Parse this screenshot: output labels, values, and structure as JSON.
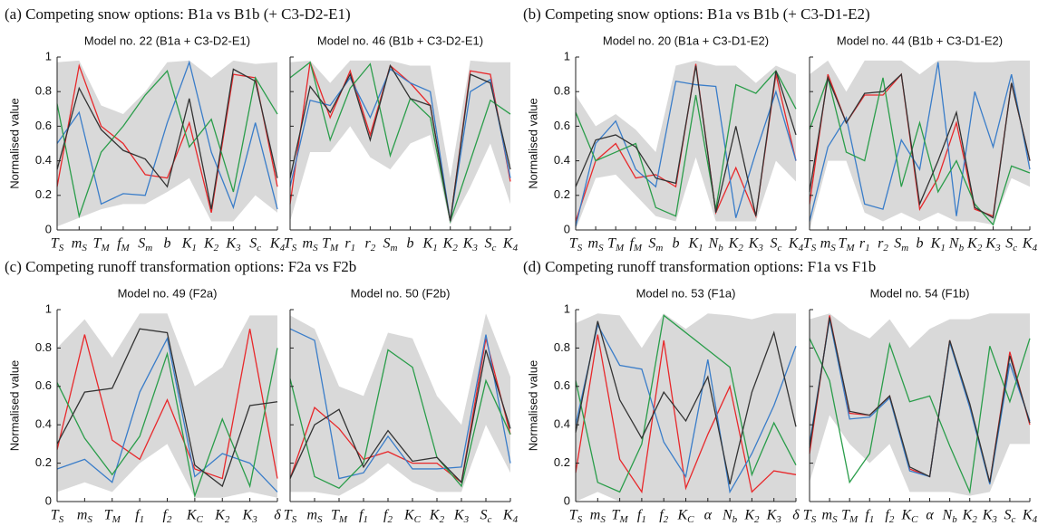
{
  "chart_data": [
    {
      "type": "line",
      "panel_title": "(a)  Competing snow options: B1a vs B1b (+ C3-D2-E1)",
      "title": "Model no. 22 (B1a + C3-D2-E1)",
      "ylabel": "Normalised value",
      "categories": [
        "T_S",
        "m_S",
        "T_M",
        "f_M",
        "S_m",
        "b",
        "K_1",
        "K_2",
        "K_3",
        "S_c",
        "K_4"
      ],
      "ylim": [
        0,
        1
      ],
      "yticks": [
        0,
        0.2,
        0.4,
        0.6,
        0.8,
        1
      ],
      "band": {
        "color": "#d9d9d9",
        "upper": [
          0.97,
          0.98,
          0.72,
          0.67,
          0.8,
          0.97,
          0.98,
          0.88,
          0.98,
          0.96,
          0.97
        ],
        "lower": [
          0.02,
          0.07,
          0.12,
          0.15,
          0.15,
          0.22,
          0.3,
          0.05,
          0.05,
          0.2,
          0.1
        ]
      },
      "series": [
        {
          "color": "#e8282b",
          "values": [
            0.25,
            0.95,
            0.6,
            0.5,
            0.32,
            0.3,
            0.62,
            0.1,
            0.9,
            0.88,
            0.25
          ]
        },
        {
          "color": "#3a7dc9",
          "values": [
            0.5,
            0.68,
            0.15,
            0.21,
            0.2,
            0.62,
            0.97,
            0.45,
            0.13,
            0.62,
            0.12
          ]
        },
        {
          "color": "#2a9d4a",
          "values": [
            0.73,
            0.08,
            0.45,
            0.6,
            0.78,
            0.92,
            0.48,
            0.64,
            0.22,
            0.88,
            0.67
          ]
        },
        {
          "color": "#333333",
          "values": [
            0.35,
            0.82,
            0.58,
            0.46,
            0.41,
            0.25,
            0.76,
            0.12,
            0.93,
            0.86,
            0.3
          ]
        }
      ]
    },
    {
      "type": "line",
      "title": "Model no. 46 (B1b + C3-D2-E1)",
      "categories": [
        "T_S",
        "m_S",
        "T_M",
        "r_1",
        "r_2",
        "S_m",
        "b",
        "K_1",
        "K_2",
        "K_3",
        "S_c",
        "K_4"
      ],
      "ylim": [
        0,
        1
      ],
      "yticks": [
        0,
        0.2,
        0.4,
        0.6,
        0.8,
        1
      ],
      "band": {
        "color": "#d9d9d9",
        "upper": [
          0.97,
          0.98,
          0.85,
          0.98,
          0.98,
          0.98,
          0.95,
          0.95,
          0.3,
          0.98,
          0.97,
          0.97
        ],
        "lower": [
          0.05,
          0.45,
          0.45,
          0.6,
          0.42,
          0.35,
          0.5,
          0.55,
          0.03,
          0.25,
          0.5,
          0.15
        ]
      },
      "series": [
        {
          "color": "#e8282b",
          "values": [
            0.15,
            0.97,
            0.65,
            0.92,
            0.55,
            0.95,
            0.85,
            0.72,
            0.05,
            0.92,
            0.9,
            0.28
          ]
        },
        {
          "color": "#3a7dc9",
          "values": [
            0.25,
            0.75,
            0.72,
            0.88,
            0.65,
            0.93,
            0.85,
            0.8,
            0.05,
            0.8,
            0.87,
            0.3
          ]
        },
        {
          "color": "#2a9d4a",
          "values": [
            0.88,
            0.97,
            0.52,
            0.82,
            0.96,
            0.43,
            0.76,
            0.65,
            0.05,
            0.4,
            0.75,
            0.67
          ]
        },
        {
          "color": "#333333",
          "values": [
            0.3,
            0.83,
            0.68,
            0.9,
            0.52,
            0.95,
            0.76,
            0.72,
            0.05,
            0.9,
            0.85,
            0.35
          ]
        }
      ]
    },
    {
      "type": "line",
      "panel_title": "(b)  Competing snow options: B1a vs B1b (+ C3-D1-E2)",
      "title": "Model no. 20 (B1a + C3-D1-E2)",
      "ylabel": "Normalised value",
      "categories": [
        "T_S",
        "m_S",
        "T_M",
        "f_M",
        "S_m",
        "b",
        "K_1",
        "N_b",
        "K_2",
        "K_3",
        "S_c",
        "K_4"
      ],
      "ylim": [
        0,
        1
      ],
      "yticks": [
        0,
        0.2,
        0.4,
        0.6,
        0.8,
        1
      ],
      "band": {
        "color": "#d9d9d9",
        "upper": [
          0.78,
          0.6,
          0.67,
          0.58,
          0.45,
          0.95,
          0.98,
          0.95,
          0.95,
          0.85,
          0.95,
          0.9
        ],
        "lower": [
          0,
          0.3,
          0.32,
          0.2,
          0.08,
          0.05,
          0.42,
          0.05,
          0.05,
          0.05,
          0.4,
          0.28
        ]
      },
      "series": [
        {
          "color": "#e8282b",
          "values": [
            0.05,
            0.4,
            0.5,
            0.3,
            0.32,
            0.25,
            0.96,
            0.1,
            0.36,
            0.08,
            0.9,
            0.4
          ]
        },
        {
          "color": "#3a7dc9",
          "values": [
            0.02,
            0.5,
            0.63,
            0.35,
            0.25,
            0.86,
            0.84,
            0.83,
            0.07,
            0.45,
            0.8,
            0.4
          ]
        },
        {
          "color": "#2a9d4a",
          "values": [
            0.68,
            0.4,
            0.45,
            0.5,
            0.13,
            0.08,
            0.78,
            0.12,
            0.84,
            0.79,
            0.92,
            0.7
          ]
        },
        {
          "color": "#333333",
          "values": [
            0.25,
            0.52,
            0.55,
            0.48,
            0.3,
            0.27,
            0.95,
            0.1,
            0.6,
            0.08,
            0.92,
            0.55
          ]
        }
      ]
    },
    {
      "type": "line",
      "title": "Model no. 44 (B1b + C3-D1-E2)",
      "categories": [
        "T_S",
        "m_S",
        "T_M",
        "r_1",
        "r_2",
        "S_m",
        "b",
        "K_1",
        "N_b",
        "K_2",
        "K_3",
        "S_c",
        "K_4"
      ],
      "ylim": [
        0,
        1
      ],
      "yticks": [
        0,
        0.2,
        0.4,
        0.6,
        0.8,
        1
      ],
      "band": {
        "color": "#d9d9d9",
        "upper": [
          0.9,
          0.98,
          0.8,
          0.98,
          0.98,
          0.98,
          0.9,
          0.98,
          0.98,
          0.97,
          0.97,
          0.98,
          0.98
        ],
        "lower": [
          0,
          0.4,
          0.4,
          0.1,
          0.05,
          0.1,
          0.05,
          0.1,
          0.05,
          0.05,
          0.03,
          0.3,
          0.25
        ]
      },
      "series": [
        {
          "color": "#e8282b",
          "values": [
            0.15,
            0.9,
            0.62,
            0.78,
            0.78,
            0.9,
            0.12,
            0.3,
            0.62,
            0.12,
            0.08,
            0.85,
            0.4
          ]
        },
        {
          "color": "#3a7dc9",
          "values": [
            0.05,
            0.48,
            0.65,
            0.15,
            0.12,
            0.52,
            0.35,
            0.97,
            0.08,
            0.8,
            0.48,
            0.9,
            0.35
          ]
        },
        {
          "color": "#2a9d4a",
          "values": [
            0.58,
            0.88,
            0.45,
            0.4,
            0.88,
            0.25,
            0.62,
            0.22,
            0.4,
            0.15,
            0.03,
            0.37,
            0.33
          ]
        },
        {
          "color": "#333333",
          "values": [
            0.22,
            0.88,
            0.62,
            0.79,
            0.8,
            0.9,
            0.15,
            0.4,
            0.68,
            0.13,
            0.07,
            0.85,
            0.4
          ]
        }
      ]
    },
    {
      "type": "line",
      "panel_title": "(c)  Competing runoff transformation options: F2a vs F2b",
      "title": "Model no. 49 (F2a)",
      "ylabel": "Normalised value",
      "categories": [
        "T_S",
        "m_S",
        "T_M",
        "f_1",
        "f_2",
        "K_C",
        "K_2",
        "K_3",
        "δ"
      ],
      "ylim": [
        0,
        1
      ],
      "yticks": [
        0,
        0.2,
        0.4,
        0.6,
        0.8,
        1
      ],
      "band": {
        "color": "#d9d9d9",
        "upper": [
          0.8,
          0.95,
          0.75,
          0.98,
          0.98,
          0.6,
          0.7,
          0.97,
          0.97
        ],
        "lower": [
          0.05,
          0.1,
          0.05,
          0.2,
          0.3,
          0.02,
          0.02,
          0.05,
          0.02
        ]
      },
      "series": [
        {
          "color": "#e8282b",
          "values": [
            0.27,
            0.87,
            0.32,
            0.22,
            0.53,
            0.17,
            0.12,
            0.9,
            0.12
          ]
        },
        {
          "color": "#3a7dc9",
          "values": [
            0.17,
            0.22,
            0.1,
            0.57,
            0.85,
            0.13,
            0.25,
            0.2,
            0.05
          ]
        },
        {
          "color": "#2a9d4a",
          "values": [
            0.62,
            0.33,
            0.14,
            0.34,
            0.77,
            0.03,
            0.43,
            0.08,
            0.8
          ]
        },
        {
          "color": "#333333",
          "values": [
            0.3,
            0.57,
            0.59,
            0.9,
            0.88,
            0.19,
            0.08,
            0.5,
            0.52
          ]
        }
      ]
    },
    {
      "type": "line",
      "title": "Model no. 50 (F2b)",
      "categories": [
        "T_S",
        "m_S",
        "T_M",
        "f_1",
        "f_2",
        "K_C",
        "K_2",
        "K_3",
        "S_c",
        "K_4"
      ],
      "ylim": [
        0,
        1
      ],
      "yticks": [
        0,
        0.2,
        0.4,
        0.6,
        0.8,
        1
      ],
      "band": {
        "color": "#d9d9d9",
        "upper": [
          0.97,
          0.9,
          0.6,
          0.55,
          0.88,
          0.85,
          0.55,
          0.4,
          0.98,
          0.65
        ],
        "lower": [
          0.05,
          0.05,
          0.03,
          0.1,
          0.2,
          0.1,
          0.05,
          0.05,
          0.4,
          0.15
        ]
      },
      "series": [
        {
          "color": "#e8282b",
          "values": [
            0.12,
            0.49,
            0.38,
            0.22,
            0.26,
            0.2,
            0.2,
            0.1,
            0.85,
            0.35
          ]
        },
        {
          "color": "#3a7dc9",
          "values": [
            0.9,
            0.84,
            0.12,
            0.15,
            0.34,
            0.17,
            0.17,
            0.18,
            0.87,
            0.2
          ]
        },
        {
          "color": "#2a9d4a",
          "values": [
            0.64,
            0.13,
            0.07,
            0.2,
            0.79,
            0.7,
            0.23,
            0.08,
            0.63,
            0.35
          ]
        },
        {
          "color": "#333333",
          "values": [
            0.12,
            0.4,
            0.48,
            0.18,
            0.37,
            0.21,
            0.23,
            0.1,
            0.79,
            0.38
          ]
        }
      ]
    },
    {
      "type": "line",
      "panel_title": "(d)  Competing runoff transformation options: F1a vs F1b",
      "title": "Model no. 53 (F1a)",
      "ylabel": "Normalised value",
      "categories": [
        "T_S",
        "m_S",
        "T_M",
        "f_1",
        "f_2",
        "K_C",
        "α",
        "N_b",
        "K_2",
        "K_3",
        "δ"
      ],
      "ylim": [
        0,
        1
      ],
      "yticks": [
        0,
        0.2,
        0.4,
        0.6,
        0.8,
        1
      ],
      "band": {
        "color": "#d9d9d9",
        "upper": [
          0.93,
          0.98,
          0.97,
          0.8,
          0.98,
          0.9,
          0.98,
          0.97,
          0.95,
          0.98,
          0.98
        ],
        "lower": [
          0,
          0.05,
          0,
          0,
          0,
          0,
          0,
          0,
          0,
          0,
          0
        ]
      },
      "series": [
        {
          "color": "#e8282b",
          "values": [
            0.15,
            0.87,
            0.22,
            0.05,
            0.84,
            0.07,
            0.35,
            0.6,
            0.05,
            0.16,
            0.14
          ]
        },
        {
          "color": "#3a7dc9",
          "values": [
            0.4,
            0.92,
            0.71,
            0.69,
            0.31,
            0.13,
            0.74,
            0.05,
            0.25,
            0.5,
            0.81
          ]
        },
        {
          "color": "#2a9d4a",
          "values": [
            0.63,
            0.1,
            0.05,
            0.3,
            0.97,
            0.88,
            0.79,
            0.7,
            0.14,
            0.41,
            0.19
          ]
        },
        {
          "color": "#333333",
          "values": [
            0.36,
            0.94,
            0.53,
            0.33,
            0.57,
            0.42,
            0.65,
            0.09,
            0.57,
            0.88,
            0.39
          ]
        }
      ]
    },
    {
      "type": "line",
      "title": "Model no. 54 (F1b)",
      "categories": [
        "T_S",
        "m_S",
        "T_M",
        "f_1",
        "f_2",
        "K_C",
        "α",
        "N_b",
        "K_2",
        "K_3",
        "S_c",
        "K_4"
      ],
      "ylim": [
        0,
        1
      ],
      "yticks": [
        0,
        0.2,
        0.4,
        0.6,
        0.8,
        1
      ],
      "band": {
        "color": "#d9d9d9",
        "upper": [
          0.95,
          0.98,
          0.9,
          0.85,
          0.95,
          0.8,
          0.9,
          0.95,
          0.95,
          0.98,
          0.98,
          0.98
        ],
        "lower": [
          0.1,
          0.45,
          0.3,
          0.2,
          0.3,
          0.05,
          0.05,
          0.05,
          0.03,
          0.05,
          0.3,
          0.3
        ]
      },
      "series": [
        {
          "color": "#e8282b",
          "values": [
            0.25,
            0.97,
            0.46,
            0.45,
            0.55,
            0.17,
            0.13,
            0.84,
            0.5,
            0.1,
            0.78,
            0.4
          ]
        },
        {
          "color": "#3a7dc9",
          "values": [
            0.3,
            0.95,
            0.43,
            0.44,
            0.54,
            0.16,
            0.13,
            0.83,
            0.49,
            0.09,
            0.72,
            0.42
          ]
        },
        {
          "color": "#2a9d4a",
          "values": [
            0.85,
            0.63,
            0.1,
            0.25,
            0.82,
            0.52,
            0.55,
            0.29,
            0.05,
            0.81,
            0.52,
            0.85
          ]
        },
        {
          "color": "#333333",
          "values": [
            0.28,
            0.96,
            0.47,
            0.45,
            0.55,
            0.18,
            0.13,
            0.84,
            0.51,
            0.1,
            0.76,
            0.41
          ]
        }
      ]
    }
  ]
}
